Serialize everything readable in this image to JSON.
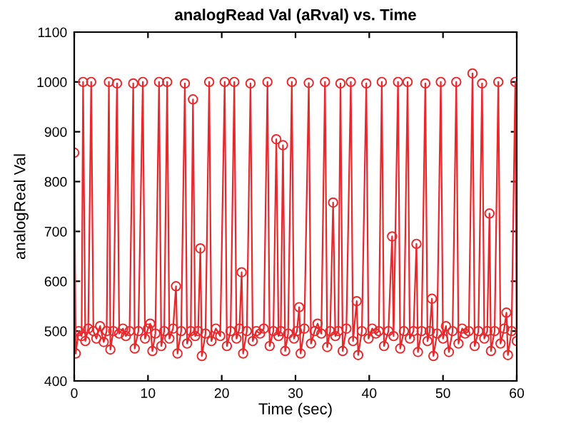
{
  "chart_data": {
    "type": "line",
    "title": "analogRead Val (aRval) vs. Time",
    "xlabel": "Time (sec)",
    "ylabel": "analogReal Val",
    "xlim": [
      0,
      60
    ],
    "ylim": [
      400,
      1100
    ],
    "xticks": [
      0,
      10,
      20,
      30,
      40,
      50,
      60
    ],
    "yticks": [
      400,
      500,
      600,
      700,
      800,
      900,
      1000,
      1100
    ],
    "marker": "circle",
    "line_style": "solid",
    "grid": false,
    "series": [
      {
        "color": "#e8292c",
        "x": [
          0,
          0.2,
          0.6,
          1.0,
          1.2,
          1.5,
          1.9,
          2.3,
          2.6,
          3.0,
          3.5,
          4.0,
          4.4,
          4.7,
          4.9,
          5.3,
          5.8,
          6.1,
          6.6,
          7.0,
          7.5,
          8.0,
          8.2,
          8.7,
          9.3,
          9.6,
          10.0,
          10.3,
          10.6,
          11.0,
          11.5,
          11.8,
          12.2,
          12.6,
          12.9,
          13.4,
          13.8,
          14.0,
          14.5,
          15.0,
          15.3,
          15.8,
          16.1,
          16.4,
          16.8,
          17.1,
          17.3,
          17.8,
          18.3,
          18.6,
          19.2,
          19.8,
          20.4,
          20.7,
          21.2,
          21.7,
          22.0,
          22.4,
          22.7,
          22.9,
          23.4,
          23.9,
          24.2,
          24.7,
          25.2,
          25.7,
          26.2,
          26.5,
          27.0,
          27.4,
          27.7,
          28.0,
          28.3,
          28.6,
          29.0,
          29.5,
          29.8,
          30.2,
          30.5,
          30.7,
          31.2,
          31.8,
          32.1,
          32.6,
          33.0,
          33.5,
          34.0,
          34.3,
          34.7,
          35.1,
          35.4,
          35.8,
          36.1,
          36.4,
          36.9,
          37.5,
          37.8,
          38.3,
          38.5,
          39.0,
          39.6,
          39.9,
          40.4,
          40.9,
          41.3,
          41.7,
          42.0,
          42.6,
          43.1,
          43.3,
          43.9,
          44.2,
          44.7,
          45.2,
          45.5,
          46.0,
          46.4,
          46.6,
          47.1,
          47.6,
          47.9,
          48.2,
          48.5,
          48.7,
          49.2,
          49.7,
          50.0,
          50.4,
          50.8,
          51.3,
          51.8,
          52.1,
          52.6,
          53.0,
          53.5,
          54.0,
          54.3,
          54.8,
          55.3,
          55.6,
          56.0,
          56.3,
          56.5,
          57.0,
          57.5,
          57.8,
          58.3,
          58.6,
          58.8,
          59.3,
          59.8,
          60.0
        ],
        "values": [
          858,
          455,
          500,
          490,
          1000,
          480,
          505,
          1000,
          500,
          485,
          510,
          478,
          500,
          1000,
          463,
          500,
          997,
          495,
          505,
          490,
          500,
          997,
          465,
          500,
          1000,
          485,
          505,
          515,
          460,
          495,
          1000,
          470,
          500,
          1000,
          485,
          505,
          590,
          455,
          500,
          997,
          475,
          500,
          965,
          490,
          500,
          666,
          450,
          495,
          1000,
          480,
          505,
          490,
          1000,
          470,
          500,
          1000,
          485,
          505,
          618,
          455,
          500,
          997,
          480,
          500,
          495,
          505,
          1000,
          470,
          500,
          885,
          490,
          500,
          873,
          460,
          495,
          1000,
          485,
          500,
          548,
          455,
          505,
          998,
          475,
          500,
          515,
          495,
          1000,
          468,
          500,
          758,
          490,
          500,
          997,
          460,
          505,
          1000,
          480,
          560,
          452,
          500,
          997,
          485,
          505,
          495,
          500,
          1000,
          470,
          500,
          690,
          490,
          1000,
          465,
          500,
          1000,
          485,
          500,
          675,
          458,
          500,
          997,
          480,
          500,
          565,
          450,
          495,
          1000,
          485,
          510,
          458,
          500,
          1000,
          475,
          505,
          495,
          500,
          1017,
          470,
          500,
          997,
          485,
          500,
          736,
          460,
          500,
          1000,
          475,
          505,
          537,
          452,
          500,
          1000,
          480
        ]
      }
    ]
  }
}
